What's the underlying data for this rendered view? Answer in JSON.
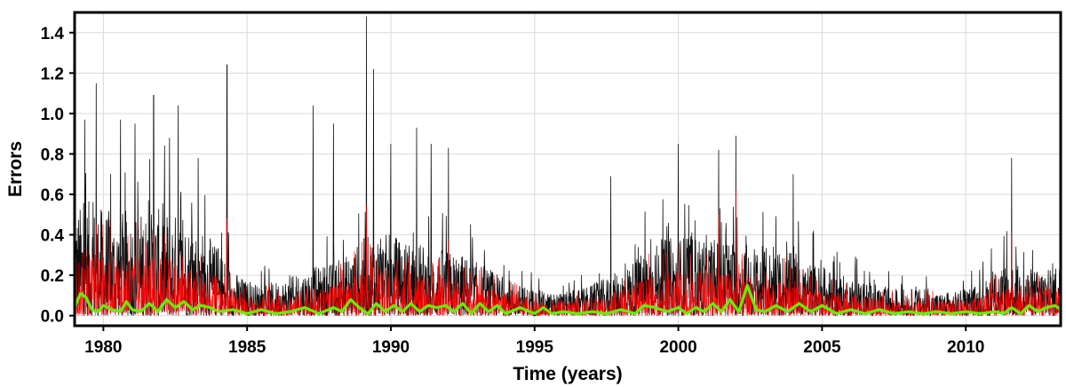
{
  "chart_data": {
    "type": "line",
    "title": "",
    "xlabel": "Time (years)",
    "ylabel": "Errors",
    "xlim": [
      1979.0,
      2013.3
    ],
    "ylim": [
      -0.05,
      1.5
    ],
    "grid": true,
    "x_ticks": [
      1980,
      1985,
      1990,
      1995,
      2000,
      2005,
      2010
    ],
    "x_tick_labels": [
      "1980",
      "1985",
      "1990",
      "1995",
      "2000",
      "2005",
      "2010"
    ],
    "y_ticks": [
      0.0,
      0.2,
      0.4,
      0.6,
      0.8,
      1.0,
      1.2,
      1.4
    ],
    "y_tick_labels": [
      "0.0",
      "0.2",
      "0.4",
      "0.6",
      "0.8",
      "1.0",
      "1.2",
      "1.4"
    ],
    "series": [
      {
        "color": "#000000",
        "style": "dense daily noisy error series",
        "x": [
          1979.0,
          1979.5,
          1980.0,
          1980.5,
          1981.0,
          1981.5,
          1982.0,
          1982.5,
          1983.0,
          1983.5,
          1984.0,
          1984.5,
          1985.0,
          1985.5,
          1986.0,
          1986.5,
          1987.0,
          1987.5,
          1988.0,
          1988.5,
          1989.0,
          1989.5,
          1990.0,
          1990.5,
          1991.0,
          1991.5,
          1992.0,
          1992.5,
          1993.0,
          1993.5,
          1994.0,
          1994.5,
          1995.0,
          1995.5,
          1996.0,
          1996.5,
          1997.0,
          1997.5,
          1998.0,
          1998.5,
          1999.0,
          1999.5,
          2000.0,
          2000.5,
          2001.0,
          2001.5,
          2002.0,
          2002.5,
          2003.0,
          2003.5,
          2004.0,
          2004.5,
          2005.0,
          2005.5,
          2006.0,
          2006.5,
          2007.0,
          2007.5,
          2008.0,
          2008.5,
          2009.0,
          2009.5,
          2010.0,
          2010.5,
          2011.0,
          2011.5,
          2012.0,
          2012.5,
          2013.0
        ],
        "typical": [
          0.28,
          0.3,
          0.28,
          0.27,
          0.28,
          0.27,
          0.28,
          0.27,
          0.24,
          0.22,
          0.18,
          0.12,
          0.09,
          0.08,
          0.09,
          0.1,
          0.12,
          0.13,
          0.14,
          0.16,
          0.2,
          0.22,
          0.21,
          0.2,
          0.19,
          0.18,
          0.17,
          0.16,
          0.14,
          0.12,
          0.1,
          0.08,
          0.07,
          0.06,
          0.06,
          0.07,
          0.08,
          0.1,
          0.12,
          0.15,
          0.18,
          0.2,
          0.21,
          0.21,
          0.21,
          0.2,
          0.2,
          0.19,
          0.18,
          0.17,
          0.16,
          0.14,
          0.13,
          0.11,
          0.1,
          0.09,
          0.08,
          0.07,
          0.07,
          0.07,
          0.06,
          0.06,
          0.07,
          0.08,
          0.12,
          0.14,
          0.13,
          0.12,
          0.14
        ],
        "peaks": [
          [
            1979.35,
            0.97
          ],
          [
            1979.75,
            1.15
          ],
          [
            1980.6,
            0.97
          ],
          [
            1981.1,
            0.95
          ],
          [
            1981.75,
            1.09
          ],
          [
            1982.3,
            0.88
          ],
          [
            1982.6,
            1.04
          ],
          [
            1983.3,
            0.78
          ],
          [
            1984.3,
            1.24
          ],
          [
            1987.3,
            1.04
          ],
          [
            1988.0,
            0.95
          ],
          [
            1989.15,
            1.48
          ],
          [
            1989.4,
            1.22
          ],
          [
            1990.0,
            0.85
          ],
          [
            1990.9,
            0.93
          ],
          [
            1991.4,
            0.85
          ],
          [
            1992.0,
            0.83
          ],
          [
            1997.65,
            0.69
          ],
          [
            2000.0,
            0.85
          ],
          [
            2001.4,
            0.82
          ],
          [
            2002.0,
            0.89
          ],
          [
            2004.0,
            0.7
          ],
          [
            2011.6,
            0.78
          ]
        ]
      },
      {
        "color": "#ff0000",
        "style": "dense daily noisy error series (lower)",
        "x": [
          1979.0,
          1979.5,
          1980.0,
          1980.5,
          1981.0,
          1981.5,
          1982.0,
          1982.5,
          1983.0,
          1983.5,
          1984.0,
          1984.5,
          1985.0,
          1985.5,
          1986.0,
          1986.5,
          1987.0,
          1987.5,
          1988.0,
          1988.5,
          1989.0,
          1989.5,
          1990.0,
          1990.5,
          1991.0,
          1991.5,
          1992.0,
          1992.5,
          1993.0,
          1993.5,
          1994.0,
          1994.5,
          1995.0,
          1995.5,
          1996.0,
          1996.5,
          1997.0,
          1997.5,
          1998.0,
          1998.5,
          1999.0,
          1999.5,
          2000.0,
          2000.5,
          2001.0,
          2001.5,
          2002.0,
          2002.5,
          2003.0,
          2003.5,
          2004.0,
          2004.5,
          2005.0,
          2005.5,
          2006.0,
          2006.5,
          2007.0,
          2007.5,
          2008.0,
          2008.5,
          2009.0,
          2009.5,
          2010.0,
          2010.5,
          2011.0,
          2011.5,
          2012.0,
          2012.5,
          2013.0
        ],
        "typical": [
          0.16,
          0.17,
          0.16,
          0.15,
          0.16,
          0.15,
          0.16,
          0.15,
          0.13,
          0.12,
          0.1,
          0.07,
          0.05,
          0.05,
          0.05,
          0.06,
          0.07,
          0.07,
          0.08,
          0.09,
          0.12,
          0.13,
          0.12,
          0.11,
          0.11,
          0.1,
          0.1,
          0.09,
          0.08,
          0.07,
          0.06,
          0.05,
          0.04,
          0.04,
          0.04,
          0.04,
          0.05,
          0.06,
          0.07,
          0.09,
          0.1,
          0.11,
          0.12,
          0.12,
          0.12,
          0.11,
          0.12,
          0.11,
          0.1,
          0.1,
          0.09,
          0.08,
          0.07,
          0.06,
          0.06,
          0.05,
          0.05,
          0.04,
          0.04,
          0.04,
          0.04,
          0.04,
          0.04,
          0.05,
          0.07,
          0.08,
          0.08,
          0.07,
          0.08
        ],
        "peaks": [
          [
            1979.75,
            0.45
          ],
          [
            1981.75,
            0.4
          ],
          [
            1984.3,
            0.48
          ],
          [
            1989.15,
            0.55
          ],
          [
            1992.0,
            0.38
          ],
          [
            2001.4,
            0.5
          ],
          [
            2002.0,
            0.62
          ],
          [
            2011.6,
            0.42
          ]
        ]
      },
      {
        "color": "#66ee00",
        "style": "smooth thick line",
        "x": [
          1979.0,
          1979.2,
          1979.4,
          1979.6,
          1979.8,
          1980.0,
          1980.3,
          1980.6,
          1980.8,
          1981.0,
          1981.3,
          1981.6,
          1981.9,
          1982.2,
          1982.5,
          1982.8,
          1983.1,
          1983.4,
          1983.7,
          1984.0,
          1984.5,
          1985.0,
          1985.5,
          1986.0,
          1986.5,
          1987.0,
          1987.5,
          1988.0,
          1988.3,
          1988.6,
          1988.9,
          1989.2,
          1989.5,
          1989.8,
          1990.1,
          1990.4,
          1990.7,
          1991.0,
          1991.3,
          1991.6,
          1991.9,
          1992.2,
          1992.5,
          1992.8,
          1993.1,
          1993.4,
          1993.7,
          1994.0,
          1994.5,
          1995.0,
          1995.3,
          1995.6,
          1996.0,
          1996.5,
          1997.0,
          1997.5,
          1998.0,
          1998.5,
          1998.8,
          1999.2,
          1999.6,
          2000.0,
          2000.3,
          2000.6,
          2000.9,
          2001.2,
          2001.5,
          2001.8,
          2002.1,
          2002.4,
          2002.7,
          2003.0,
          2003.4,
          2003.8,
          2004.2,
          2004.6,
          2005.0,
          2005.5,
          2006.0,
          2006.5,
          2007.0,
          2007.5,
          2008.0,
          2008.5,
          2009.0,
          2009.5,
          2010.0,
          2010.5,
          2011.0,
          2011.3,
          2011.6,
          2011.9,
          2012.2,
          2012.5,
          2012.8,
          2013.1,
          2013.3
        ],
        "y": [
          0.04,
          0.11,
          0.09,
          0.03,
          0.02,
          0.05,
          0.03,
          0.02,
          0.07,
          0.03,
          0.02,
          0.06,
          0.02,
          0.08,
          0.04,
          0.07,
          0.03,
          0.05,
          0.04,
          0.02,
          0.03,
          0.01,
          0.03,
          0.01,
          0.02,
          0.04,
          0.01,
          0.04,
          0.02,
          0.08,
          0.04,
          0.01,
          0.06,
          0.02,
          0.05,
          0.02,
          0.06,
          0.02,
          0.05,
          0.04,
          0.05,
          0.02,
          0.06,
          0.01,
          0.06,
          0.02,
          0.05,
          0.01,
          0.04,
          0.01,
          0.04,
          0.01,
          0.02,
          0.01,
          0.02,
          0.01,
          0.03,
          0.01,
          0.05,
          0.04,
          0.02,
          0.04,
          0.01,
          0.04,
          0.02,
          0.06,
          0.02,
          0.08,
          0.02,
          0.15,
          0.03,
          0.02,
          0.05,
          0.02,
          0.06,
          0.02,
          0.05,
          0.01,
          0.03,
          0.01,
          0.03,
          0.01,
          0.02,
          0.01,
          0.02,
          0.01,
          0.02,
          0.01,
          0.02,
          0.01,
          0.04,
          0.01,
          0.05,
          0.02,
          0.04,
          0.05,
          0.03
        ]
      }
    ]
  }
}
